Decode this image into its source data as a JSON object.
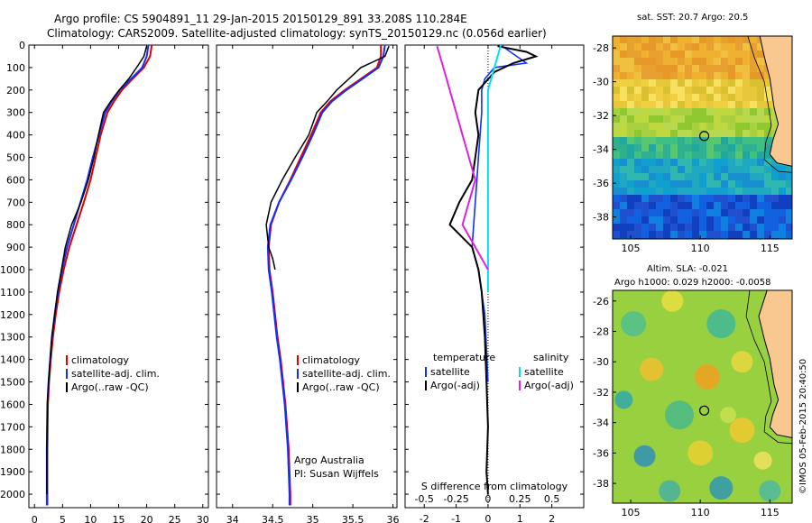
{
  "header": {
    "line1": "Argo profile: CS 5904891_11 29-Jan-2015 20150129_891 33.208S 110.284E",
    "line2": "Climatology: CARS2009. Satellite-adjusted climatology: synTS_20150129.nc (0.056d earlier)"
  },
  "colors": {
    "climatology": "#e00000",
    "satellite": "#1030ff",
    "argo": "#000000",
    "s_satellite": "#00e0f0",
    "s_argo": "#e020e0"
  },
  "depth_axis": {
    "ticks": [
      "0",
      "100",
      "200",
      "300",
      "400",
      "500",
      "600",
      "700",
      "800",
      "900",
      "1000",
      "1100",
      "1200",
      "1300",
      "1400",
      "1500",
      "1600",
      "1700",
      "1800",
      "1900",
      "2000"
    ]
  },
  "chart_data": [
    {
      "type": "line",
      "id": "temperature",
      "xlabel": "temperature (deg C)",
      "xlim": [
        -1,
        31
      ],
      "ylim": [
        2060,
        0
      ],
      "xticks": [
        "0",
        "5",
        "10",
        "15",
        "20",
        "25",
        "30"
      ],
      "legend": [
        "climatology",
        "satellite-adj. clim.",
        "Argo(..raw -QC)"
      ],
      "series": [
        {
          "name": "climatology",
          "x": [
            20.9,
            20.6,
            19.5,
            17.5,
            15.6,
            14.2,
            13.0,
            11.8,
            10.9,
            10.0,
            8.8,
            7.5,
            6.2,
            5.2,
            4.4,
            3.8,
            3.3,
            2.9,
            2.6,
            2.4,
            2.3,
            2.3,
            2.3
          ],
          "y": [
            0,
            50,
            100,
            150,
            200,
            250,
            300,
            400,
            500,
            600,
            700,
            800,
            900,
            1000,
            1100,
            1200,
            1300,
            1400,
            1500,
            1600,
            1800,
            2000,
            2050
          ]
        },
        {
          "name": "satellite-adj. clim.",
          "x": [
            20.3,
            20.0,
            19.2,
            17.2,
            15.2,
            13.8,
            12.6,
            11.5,
            10.4,
            9.4,
            8.2,
            7.0,
            5.8,
            4.9,
            4.2,
            3.6,
            3.1,
            2.8,
            2.5,
            2.3,
            2.2,
            2.2,
            2.2
          ],
          "y": [
            0,
            50,
            100,
            150,
            200,
            250,
            300,
            400,
            500,
            600,
            700,
            800,
            900,
            1000,
            1100,
            1200,
            1300,
            1400,
            1500,
            1600,
            1800,
            2000,
            2050
          ]
        },
        {
          "name": "Argo(..raw -QC)",
          "x": [
            20.0,
            19.5,
            18.2,
            16.8,
            15.1,
            13.6,
            12.3,
            11.4,
            10.6,
            9.6,
            8.3,
            6.6,
            5.5,
            4.8,
            4.1,
            3.6,
            3.1,
            2.8,
            2.5,
            2.3,
            2.2,
            2.2
          ],
          "y": [
            5,
            50,
            100,
            150,
            200,
            250,
            300,
            400,
            500,
            600,
            700,
            800,
            900,
            1000,
            1100,
            1200,
            1300,
            1400,
            1500,
            1600,
            1800,
            2000
          ]
        }
      ],
      "text_bottom": ""
    },
    {
      "type": "line",
      "id": "salinity",
      "xlabel": "salinity",
      "xlim": [
        33.8,
        36.05
      ],
      "ylim": [
        2060,
        0
      ],
      "xticks": [
        "34",
        "34.5",
        "35",
        "35.5",
        "36"
      ],
      "legend": [
        "climatology",
        "satellite-adj. clim.",
        "Argo(..raw -QC)"
      ],
      "series": [
        {
          "name": "climatology",
          "x": [
            35.85,
            35.85,
            35.8,
            35.6,
            35.4,
            35.22,
            35.1,
            34.98,
            34.85,
            34.72,
            34.58,
            34.48,
            34.45,
            34.46,
            34.5,
            34.53,
            34.56,
            34.6,
            34.63,
            34.66,
            34.7,
            34.72,
            34.72
          ],
          "y": [
            0,
            50,
            100,
            150,
            200,
            250,
            300,
            400,
            500,
            600,
            700,
            800,
            900,
            1000,
            1100,
            1200,
            1300,
            1400,
            1500,
            1600,
            1800,
            2000,
            2050
          ]
        },
        {
          "name": "satellite-adj. clim.",
          "x": [
            35.9,
            35.88,
            35.82,
            35.62,
            35.42,
            35.24,
            35.12,
            35.0,
            34.87,
            34.73,
            34.58,
            34.47,
            34.44,
            34.45,
            34.49,
            34.52,
            34.55,
            34.59,
            34.62,
            34.65,
            34.69,
            34.71,
            34.71
          ],
          "y": [
            0,
            50,
            100,
            150,
            200,
            250,
            300,
            400,
            500,
            600,
            700,
            800,
            900,
            1000,
            1100,
            1200,
            1300,
            1400,
            1500,
            1600,
            1800,
            2000,
            2050
          ]
        },
        {
          "name": "Argo(..raw -QC)",
          "x": [
            35.95,
            35.9,
            35.6,
            35.45,
            35.3,
            35.18,
            35.05,
            34.95,
            34.78,
            34.62,
            34.48,
            34.42,
            34.45,
            34.5,
            34.53
          ],
          "y": [
            5,
            50,
            100,
            150,
            200,
            250,
            300,
            400,
            500,
            600,
            700,
            800,
            900,
            950,
            1000
          ]
        }
      ],
      "text_bottom": [
        "Argo Australia",
        "PI: Susan Wijffels"
      ]
    },
    {
      "type": "line",
      "id": "difference",
      "xlabel": "T difference from climatology",
      "xlabel_top": "S difference from climatology",
      "xlim": [
        -2.6,
        3.0
      ],
      "ylim": [
        2060,
        0
      ],
      "xticks": [
        "-2",
        "-1",
        "0",
        "1",
        "2"
      ],
      "xticks_s": [
        "-0.5",
        "-0.25",
        "0",
        "0.25",
        "0.5"
      ],
      "legend_headers": [
        "temperature",
        "salinity"
      ],
      "legend": [
        "satellite",
        "Argo(-adj)",
        "satellite",
        "Argo(-adj)"
      ],
      "series": [
        {
          "name": "satellite",
          "x": [
            0.4,
            0.8,
            1.2,
            0.2,
            -0.1,
            -0.2,
            -0.2,
            -0.25,
            -0.3,
            -0.35,
            -0.4,
            -0.45,
            -0.5,
            -0.3,
            -0.1,
            0.0
          ],
          "y": [
            0,
            40,
            80,
            100,
            150,
            200,
            300,
            400,
            500,
            600,
            700,
            800,
            900,
            1000,
            1200,
            1500
          ]
        },
        {
          "name": "Argo(-adj)",
          "x": [
            0.3,
            1.2,
            1.5,
            0.8,
            0.2,
            -0.3,
            -0.4,
            -0.3,
            -0.4,
            -0.5,
            -0.9,
            -1.2,
            -0.5,
            -0.3,
            -0.2,
            -0.1,
            -0.05,
            0.0,
            -0.05,
            0.0
          ],
          "y": [
            5,
            30,
            50,
            80,
            120,
            200,
            300,
            400,
            500,
            600,
            700,
            800,
            900,
            1000,
            1100,
            1300,
            1500,
            1700,
            1900,
            2000
          ]
        },
        {
          "name": "satellite",
          "x": [
            0.1,
            0.05,
            0.0,
            0.0,
            0.0,
            0.0,
            0.0,
            0.0
          ],
          "y": [
            0,
            100,
            200,
            400,
            600,
            800,
            1000,
            1100
          ]
        },
        {
          "name": "Argo(-adj)",
          "x": [
            -0.4,
            -0.35,
            -0.3,
            -0.2,
            -0.1,
            -0.2,
            -0.1,
            0.0
          ],
          "y": [
            5,
            100,
            200,
            400,
            600,
            800,
            900,
            1000
          ]
        }
      ]
    },
    {
      "type": "heatmap",
      "id": "map-sst",
      "title": "sat. SST: 20.7  Argo: 20.5",
      "xticks": [
        "105",
        "110",
        "115"
      ],
      "yticks": [
        "-28",
        "-30",
        "-32",
        "-34",
        "-36",
        "-38"
      ],
      "marker": {
        "lon": 110.284,
        "lat": -33.208
      }
    },
    {
      "type": "heatmap",
      "id": "map-sla",
      "title": "Altim. SLA: -0.021",
      "subtitle": "Argo h1000: 0.029  h2000: -0.0058",
      "xticks": [
        "105",
        "110",
        "115"
      ],
      "yticks": [
        "-26",
        "-28",
        "-30",
        "-32",
        "-34",
        "-36",
        "-38"
      ],
      "marker": {
        "lon": 110.284,
        "lat": -33.208
      }
    }
  ],
  "credit": "©IMOS 05-Feb-2015 20:40:50"
}
